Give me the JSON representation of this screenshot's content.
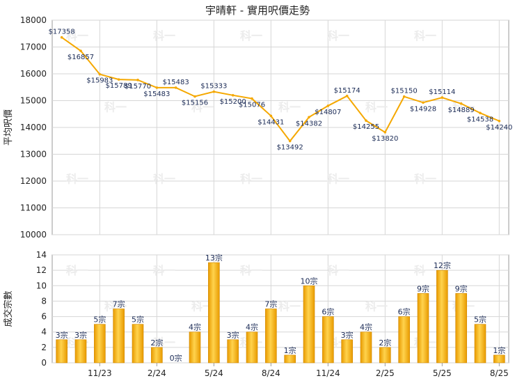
{
  "title": "宇晴軒 - 實用呎價走勢",
  "watermark": "科一",
  "chart_data": [
    {
      "type": "line",
      "ylabel": "平均呎價",
      "ylim": [
        10000,
        18000
      ],
      "yticks": [
        10000,
        11000,
        12000,
        13000,
        14000,
        15000,
        16000,
        17000,
        18000
      ],
      "color": "#f5a800",
      "points": [
        {
          "x": 0,
          "y": 17358,
          "label": "$17358"
        },
        {
          "x": 1,
          "y": 16857,
          "label": "$16857"
        },
        {
          "x": 2,
          "y": 15983,
          "label": "$15983"
        },
        {
          "x": 3,
          "y": 15789,
          "label": "$15789"
        },
        {
          "x": 4,
          "y": 15770,
          "label": "$15770"
        },
        {
          "x": 5,
          "y": 15483,
          "label": "$15483"
        },
        {
          "x": 6,
          "y": 15483,
          "label": "$15483"
        },
        {
          "x": 7,
          "y": 15156,
          "label": "$15156"
        },
        {
          "x": 8,
          "y": 15333,
          "label": "$15333"
        },
        {
          "x": 9,
          "y": 15200,
          "label": "$15200"
        },
        {
          "x": 10,
          "y": 15076,
          "label": "$15076"
        },
        {
          "x": 11,
          "y": 14431,
          "label": "$14431"
        },
        {
          "x": 12,
          "y": 13492,
          "label": "$13492"
        },
        {
          "x": 13,
          "y": 14382,
          "label": "$14382"
        },
        {
          "x": 14,
          "y": 14807,
          "label": "$14807"
        },
        {
          "x": 15,
          "y": 15174,
          "label": "$15174"
        },
        {
          "x": 16,
          "y": 14255,
          "label": "$14255"
        },
        {
          "x": 17,
          "y": 13820,
          "label": "$13820"
        },
        {
          "x": 18,
          "y": 15150,
          "label": "$15150"
        },
        {
          "x": 19,
          "y": 14928,
          "label": "$14928"
        },
        {
          "x": 20,
          "y": 15114,
          "label": "$15114"
        },
        {
          "x": 21,
          "y": 14889,
          "label": "$14889"
        },
        {
          "x": 22,
          "y": 14538,
          "label": "$14538"
        },
        {
          "x": 23,
          "y": 14240,
          "label": "$14240"
        }
      ]
    },
    {
      "type": "bar",
      "ylabel": "成交宗數",
      "ylim": [
        0,
        14
      ],
      "yticks": [
        0,
        2,
        4,
        6,
        8,
        10,
        12,
        14
      ],
      "color": "#f5b000",
      "values": [
        3,
        3,
        5,
        7,
        5,
        2,
        0,
        4,
        13,
        3,
        4,
        7,
        1,
        10,
        6,
        3,
        4,
        2,
        6,
        9,
        12,
        9,
        5,
        1
      ],
      "labels": [
        "3宗",
        "3宗",
        "5宗",
        "7宗",
        "5宗",
        "2宗",
        "0宗",
        "4宗",
        "13宗",
        "3宗",
        "4宗",
        "7宗",
        "1宗",
        "10宗",
        "6宗",
        "3宗",
        "4宗",
        "2宗",
        "6宗",
        "9宗",
        "12宗",
        "9宗",
        "5宗",
        "1宗"
      ],
      "xticks": [
        {
          "index": 2,
          "label": "11/23"
        },
        {
          "index": 5,
          "label": "2/24"
        },
        {
          "index": 8,
          "label": "5/24"
        },
        {
          "index": 11,
          "label": "8/24"
        },
        {
          "index": 14,
          "label": "11/24"
        },
        {
          "index": 17,
          "label": "2/25"
        },
        {
          "index": 20,
          "label": "5/25"
        },
        {
          "index": 23,
          "label": "8/25"
        }
      ]
    }
  ]
}
